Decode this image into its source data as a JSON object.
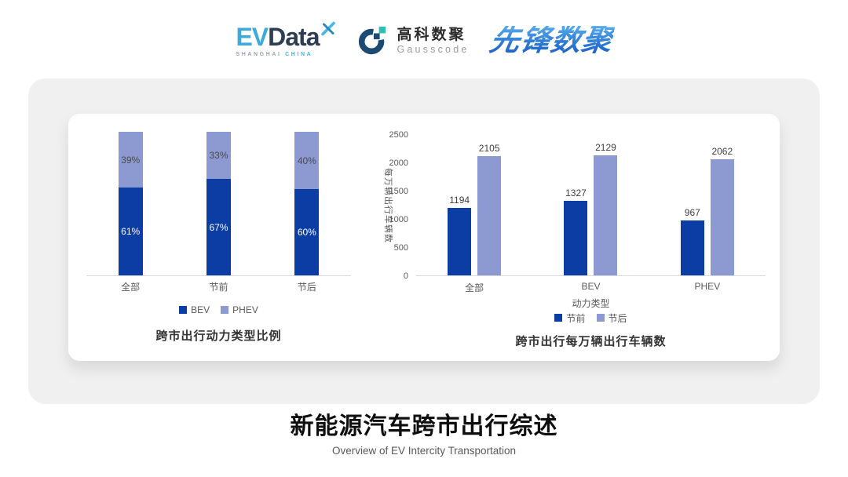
{
  "header": {
    "evdata": {
      "prefix": "EV",
      "suffix": "Data",
      "sub_left": "SHANGHAI",
      "sub_right": "CHINA"
    },
    "gausscode": {
      "name_cn": "高科数聚",
      "name_en": "Gausscode"
    },
    "xianfeng": {
      "name": "先锋数聚"
    }
  },
  "icons": {
    "evdata_x_icon": "four-point-cross-star",
    "gausscode_mark_icon": "open-ring-with-squares"
  },
  "colors": {
    "pre_series_blue": "#0C3DA5",
    "post_series_periwinkle": "#8D9AD2",
    "axis_line": "#D9D9D9",
    "axis_text": "#595959",
    "value_label": "#404040",
    "card_gray": "#F0F0F0",
    "evdata_lightblue": "#3FA9DC",
    "evdata_navy": "#2E3D52",
    "gauss_navy": "#1B4A73",
    "gauss_teal": "#2FBEB4",
    "xianfeng_blue": "#2E7BD5"
  },
  "chart_data": [
    {
      "type": "bar",
      "subtype": "stacked_percent",
      "title": "跨市出行动力类型比例",
      "categories": [
        "全部",
        "节前",
        "节后"
      ],
      "series": [
        {
          "name": "BEV",
          "color": "#0C3DA5",
          "values": [
            61,
            67,
            60
          ],
          "labels": [
            "61%",
            "67%",
            "60%"
          ],
          "label_color": "#FFFFFF"
        },
        {
          "name": "PHEV",
          "color": "#8D9AD2",
          "values": [
            39,
            33,
            40
          ],
          "labels": [
            "39%",
            "33%",
            "40%"
          ],
          "label_color": "#4A4A4A"
        }
      ],
      "ylim": [
        0,
        100
      ],
      "grid": false,
      "legend_position": "bottom"
    },
    {
      "type": "bar",
      "subtype": "grouped",
      "title": "跨市出行每万辆出行车辆数",
      "xlabel": "动力类型",
      "ylabel": "每万辆出行车辆数",
      "categories": [
        "全部",
        "BEV",
        "PHEV"
      ],
      "series": [
        {
          "name": "节前",
          "color": "#0C3DA5",
          "values": [
            1194,
            1327,
            967
          ]
        },
        {
          "name": "节后",
          "color": "#8D9AD2",
          "values": [
            2105,
            2129,
            2062
          ]
        }
      ],
      "ylim": [
        0,
        2500
      ],
      "yticks": [
        0,
        500,
        1000,
        1500,
        2000,
        2500
      ],
      "grid": false,
      "legend_position": "bottom"
    }
  ],
  "footer": {
    "title": "新能源汽车跨市出行综述",
    "subtitle": "Overview of EV Intercity Transportation"
  }
}
